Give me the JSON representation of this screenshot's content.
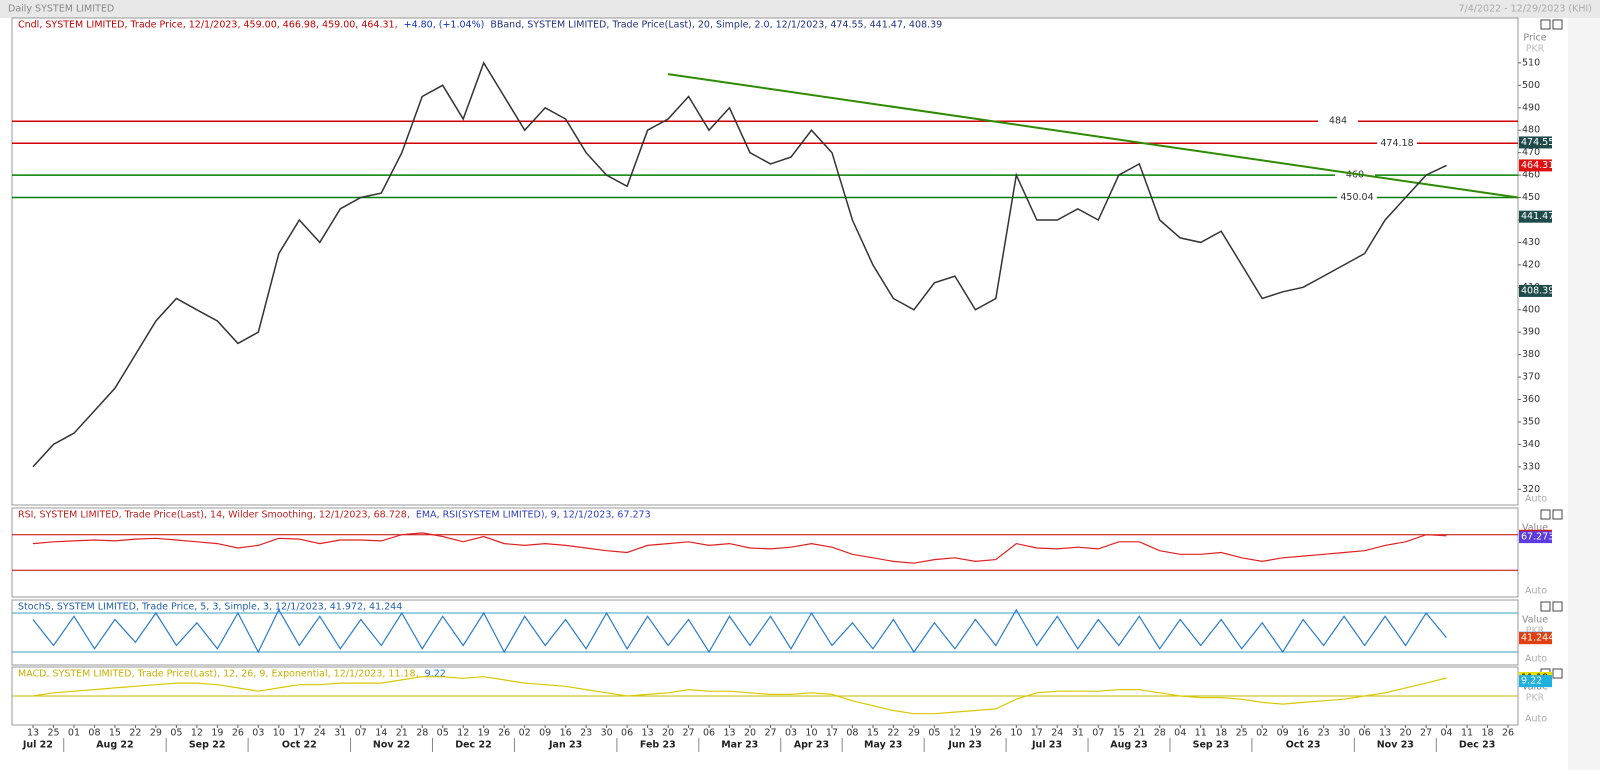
{
  "header": {
    "title": "Daily SYSTEM LIMITED",
    "range": "7/4/2022 - 12/29/2023 (KHI)"
  },
  "chart_data": [
    {
      "type": "line",
      "name": "price",
      "legend": [
        "Cndl, SYSTEM LIMITED, Trade Price, 12/1/2023, 459.00, 466.98, 459.00, 464.31,",
        "+4.80, (+1.04%)",
        "BBand, SYSTEM LIMITED, Trade Price(Last), 20, Simple, 2.0, 12/1/2023, 474.55, 441.47, 408.39"
      ],
      "axis_title": "Price",
      "unit": "PKR",
      "scale_mode": "Auto",
      "categories": [
        "13",
        "25",
        "01",
        "08",
        "15",
        "22",
        "29",
        "05",
        "12",
        "19",
        "26",
        "03",
        "10",
        "17",
        "24",
        "31",
        "07",
        "14",
        "21",
        "28",
        "05",
        "12",
        "19",
        "26",
        "02",
        "09",
        "16",
        "23",
        "30",
        "06",
        "13",
        "20",
        "27",
        "06",
        "13",
        "20",
        "27",
        "03",
        "10",
        "17",
        "08",
        "15",
        "22",
        "29",
        "05",
        "12",
        "19",
        "26",
        "10",
        "17",
        "24",
        "31",
        "07",
        "15",
        "21",
        "28",
        "04",
        "11",
        "18",
        "25",
        "02",
        "09",
        "16",
        "23",
        "30",
        "06",
        "13",
        "20",
        "27",
        "04",
        "11",
        "18",
        "26"
      ],
      "months": [
        "Jul 22",
        "Aug 22",
        "Sep 22",
        "Oct 22",
        "Nov 22",
        "Dec 22",
        "Jan 23",
        "Feb 23",
        "Mar 23",
        "Apr 23",
        "May 23",
        "Jun 23",
        "Jul 23",
        "Aug 23",
        "Sep 23",
        "Oct 23",
        "Nov 23",
        "Dec 23"
      ],
      "values": [
        330,
        340,
        345,
        355,
        365,
        380,
        395,
        405,
        400,
        395,
        385,
        390,
        425,
        440,
        430,
        445,
        450,
        452,
        470,
        495,
        500,
        485,
        510,
        495,
        480,
        490,
        485,
        470,
        460,
        455,
        480,
        485,
        495,
        480,
        490,
        470,
        465,
        468,
        480,
        470,
        440,
        420,
        405,
        400,
        412,
        415,
        400,
        405,
        460,
        440,
        440,
        445,
        440,
        460,
        465,
        440,
        432,
        430,
        435,
        420,
        405,
        408,
        410,
        415,
        420,
        425,
        440,
        450,
        460,
        464.31,
        null,
        null,
        null
      ],
      "color": "#333333",
      "ylim": [
        313,
        530
      ],
      "yticks": [
        320,
        330,
        340,
        350,
        360,
        370,
        380,
        390,
        400,
        410,
        420,
        430,
        440,
        450,
        460,
        470,
        480,
        490,
        500,
        510
      ],
      "levels": [
        {
          "value": 484,
          "color": "#d00000"
        },
        {
          "value": 474.18,
          "color": "#d00000"
        },
        {
          "value": 460,
          "color": "#008000"
        },
        {
          "value": 450.04,
          "color": "#008000"
        }
      ],
      "trendline": {
        "values": [
          505,
          450
        ],
        "color": "#2e8b00"
      },
      "tags": [
        {
          "value": 474.55,
          "color": "#1f4a4a"
        },
        {
          "value": 464.31,
          "color": "#e01010"
        },
        {
          "value": 441.47,
          "color": "#1f4a4a"
        },
        {
          "value": 408.39,
          "color": "#1f4a4a"
        }
      ]
    },
    {
      "type": "line",
      "name": "rsi",
      "legend": [
        "RSI, SYSTEM LIMITED, Trade Price(Last), 14, Wilder Smoothing, 12/1/2023, 68.728,",
        "EMA, RSI(SYSTEM LIMITED), 9, 12/1/2023, 67.273"
      ],
      "axis_title": "Value",
      "unit": "PKR",
      "scale_mode": "Auto",
      "values": [
        60,
        62,
        63,
        64,
        63,
        65,
        66,
        64,
        62,
        60,
        55,
        58,
        66,
        65,
        60,
        64,
        64,
        63,
        70,
        72,
        68,
        62,
        68,
        60,
        58,
        60,
        58,
        55,
        52,
        50,
        58,
        60,
        62,
        58,
        60,
        55,
        54,
        56,
        60,
        56,
        48,
        44,
        40,
        38,
        42,
        44,
        40,
        42,
        60,
        55,
        54,
        56,
        54,
        62,
        62,
        52,
        48,
        48,
        50,
        44,
        40,
        44,
        46,
        48,
        50,
        52,
        58,
        62,
        70,
        68.728,
        null,
        null,
        null
      ],
      "color": "#e02020",
      "ylim": [
        0,
        100
      ],
      "levels": [
        {
          "value": 70,
          "color": "#c00000"
        },
        {
          "value": 30,
          "color": "#c00000"
        }
      ],
      "tags": [
        {
          "value": 68.728,
          "color": "#e01010"
        },
        {
          "value": 67.273,
          "color": "#5a3ce0"
        }
      ]
    },
    {
      "type": "line",
      "name": "stoch",
      "legend": [
        "StochS, SYSTEM LIMITED, Trade Price, 5, 3, Simple, 3, 12/1/2023, 41.972, 41.244"
      ],
      "axis_title": "Value",
      "unit": "PKR",
      "scale_mode": "Auto",
      "values": [
        70,
        30,
        75,
        25,
        70,
        35,
        80,
        30,
        65,
        25,
        80,
        20,
        85,
        30,
        75,
        25,
        70,
        30,
        80,
        25,
        75,
        30,
        80,
        20,
        75,
        30,
        70,
        25,
        80,
        25,
        75,
        30,
        70,
        20,
        75,
        30,
        75,
        25,
        80,
        30,
        65,
        25,
        70,
        20,
        65,
        25,
        70,
        30,
        85,
        30,
        75,
        25,
        70,
        30,
        75,
        25,
        70,
        30,
        70,
        25,
        65,
        20,
        70,
        30,
        75,
        30,
        75,
        30,
        80,
        41.972,
        null,
        null,
        null
      ],
      "color": "#2a7bd0",
      "ylim": [
        0,
        100
      ],
      "levels": [
        {
          "value": 80,
          "color": "#3aa0c0"
        },
        {
          "value": 20,
          "color": "#3aa0c0"
        }
      ],
      "tags": [
        {
          "value": 41.972,
          "color": "#2a8ae0"
        },
        {
          "value": 41.244,
          "color": "#e04010"
        }
      ]
    },
    {
      "type": "line",
      "name": "macd",
      "legend": [
        "MACD, SYSTEM LIMITED, Trade Price(Last), 12, 26, 9, Exponential, 12/1/2023, 11.18,",
        "9.22"
      ],
      "axis_title": "Value",
      "unit": "PKR",
      "scale_mode": "Auto",
      "values": [
        0,
        2,
        3,
        4,
        5,
        6,
        7,
        8,
        8,
        7,
        5,
        3,
        5,
        7,
        7,
        8,
        8,
        8,
        10,
        12,
        12,
        11,
        12,
        10,
        8,
        7,
        6,
        4,
        2,
        0,
        1,
        2,
        4,
        3,
        3,
        2,
        1,
        1,
        2,
        1,
        -3,
        -6,
        -9,
        -11,
        -11,
        -10,
        -9,
        -8,
        -2,
        2,
        3,
        3,
        3,
        4,
        4,
        2,
        0,
        -1,
        -1,
        -2,
        -4,
        -5,
        -4,
        -3,
        -2,
        0,
        2,
        5,
        8,
        11.18,
        null,
        null,
        null
      ],
      "color": "#d8c800",
      "ylim": [
        -18,
        18
      ],
      "levels": [
        {
          "value": 0,
          "color": "#c8b800"
        }
      ],
      "tags": [
        {
          "value": 11.18,
          "color": "#e8e000"
        },
        {
          "value": 9.22,
          "color": "#20b0e0"
        }
      ]
    }
  ]
}
